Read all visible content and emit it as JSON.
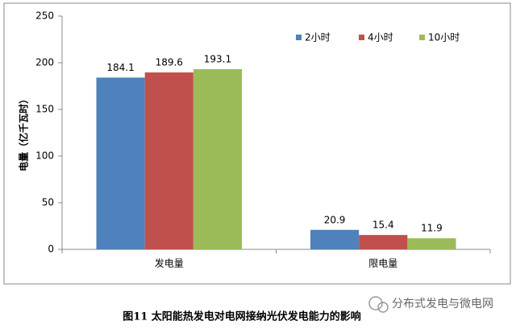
{
  "chart_data": {
    "type": "bar",
    "y_label": "电量（亿千瓦时）",
    "categories": [
      "发电量",
      "限电量"
    ],
    "series": [
      {
        "name": "2小时",
        "color": "#4f81bd",
        "values": [
          184.1,
          20.9
        ]
      },
      {
        "name": "4小时",
        "color": "#c0504d",
        "values": [
          189.6,
          15.4
        ]
      },
      {
        "name": "10小时",
        "color": "#9bbb59",
        "values": [
          193.1,
          11.9
        ]
      }
    ],
    "ylim": [
      0,
      250
    ],
    "yticks": [
      0,
      50,
      100,
      150,
      200,
      250
    ],
    "grid": false,
    "legend": "top-right",
    "data_labels": true
  },
  "caption": "图11 太阳能热发电对电网接纳光伏发电能力的影响",
  "watermark": "分布式发电与微电网"
}
